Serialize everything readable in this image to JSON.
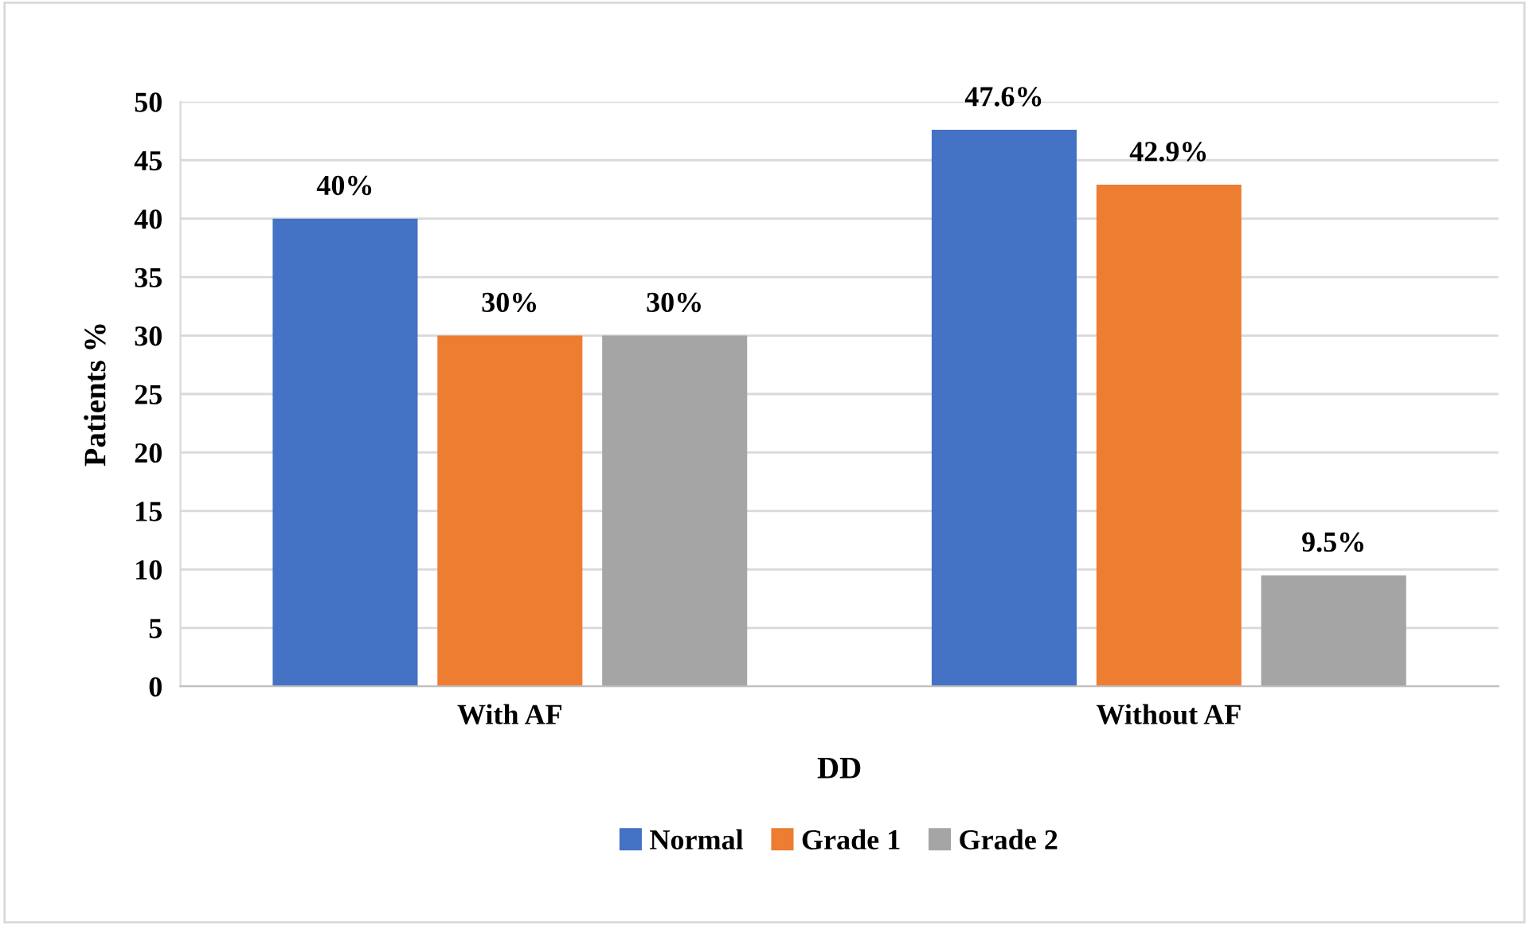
{
  "chart_data": {
    "type": "bar",
    "xlabel": "DD",
    "ylabel": "Patients %",
    "categories": [
      "With AF",
      "Without AF"
    ],
    "series": [
      {
        "name": "Normal",
        "color": "#4472c4",
        "values": [
          40,
          47.6
        ],
        "value_labels": [
          "40%",
          "47.6%"
        ]
      },
      {
        "name": "Grade 1",
        "color": "#ed7d31",
        "values": [
          30,
          42.9
        ],
        "value_labels": [
          "30%",
          "42.9%"
        ]
      },
      {
        "name": "Grade 2",
        "color": "#a5a5a5",
        "values": [
          30,
          9.5
        ],
        "value_labels": [
          "30%",
          "9.5%"
        ]
      }
    ],
    "ylim": [
      0,
      50
    ],
    "yticks": [
      0,
      5,
      10,
      15,
      20,
      25,
      30,
      35,
      40,
      45,
      50
    ],
    "grid": "y",
    "legend": "bottom"
  }
}
